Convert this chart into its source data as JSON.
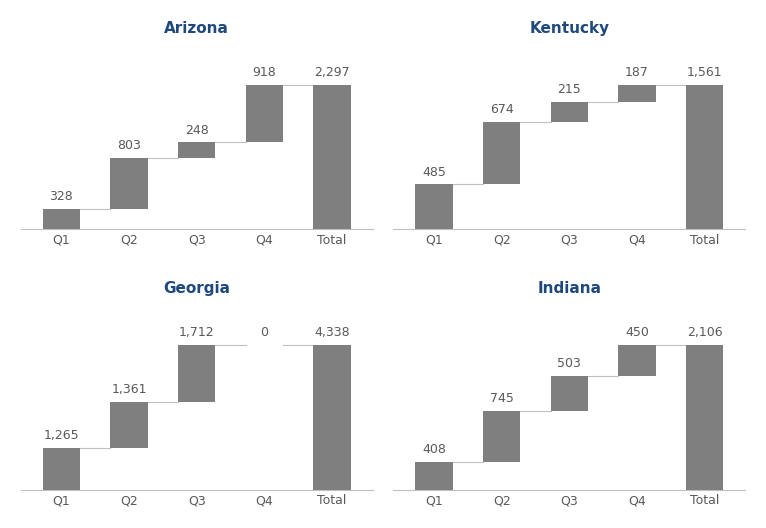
{
  "charts": [
    {
      "title": "Arizona",
      "values": [
        328,
        803,
        248,
        918,
        2297
      ],
      "labels": [
        "Q1",
        "Q2",
        "Q3",
        "Q4",
        "Total"
      ],
      "total_index": 4
    },
    {
      "title": "Kentucky",
      "values": [
        485,
        674,
        215,
        187,
        1561
      ],
      "labels": [
        "Q1",
        "Q2",
        "Q3",
        "Q4",
        "Total"
      ],
      "total_index": 4
    },
    {
      "title": "Georgia",
      "values": [
        1265,
        1361,
        1712,
        0,
        4338
      ],
      "labels": [
        "Q1",
        "Q2",
        "Q3",
        "Q4",
        "Total"
      ],
      "total_index": 4
    },
    {
      "title": "Indiana",
      "values": [
        408,
        745,
        503,
        450,
        2106
      ],
      "labels": [
        "Q1",
        "Q2",
        "Q3",
        "Q4",
        "Total"
      ],
      "total_index": 4
    }
  ],
  "bar_color": "#7f7f7f",
  "title_color": "#1F497D",
  "label_color": "#595959",
  "bar_width": 0.55,
  "connector_color": "#C0C0C0",
  "background_color": "#FFFFFF",
  "label_fontsize": 9,
  "title_fontsize": 11
}
